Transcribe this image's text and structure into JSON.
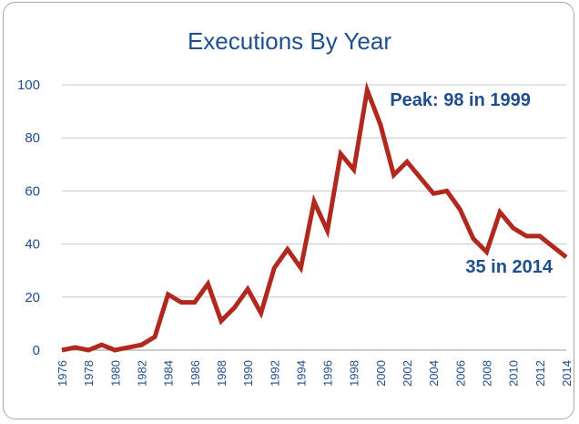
{
  "chart_data": {
    "type": "line",
    "title": "Executions By Year",
    "xlabel": "",
    "ylabel": "",
    "ylim": [
      0,
      100
    ],
    "yticks": [
      0,
      20,
      40,
      60,
      80,
      100
    ],
    "xtick_labels": [
      "1976",
      "1978",
      "1980",
      "1982",
      "1984",
      "1986",
      "1988",
      "1990",
      "1992",
      "1994",
      "1996",
      "1998",
      "2000",
      "2002",
      "2004",
      "2006",
      "2008",
      "2010",
      "2012",
      "2014"
    ],
    "grid": true,
    "x": [
      1976,
      1977,
      1978,
      1979,
      1980,
      1981,
      1982,
      1983,
      1984,
      1985,
      1986,
      1987,
      1988,
      1989,
      1990,
      1991,
      1992,
      1993,
      1994,
      1995,
      1996,
      1997,
      1998,
      1999,
      2000,
      2001,
      2002,
      2003,
      2004,
      2005,
      2006,
      2007,
      2008,
      2009,
      2010,
      2011,
      2012,
      2013,
      2014
    ],
    "series": [
      {
        "values": [
          0,
          1,
          0,
          2,
          0,
          1,
          2,
          5,
          21,
          18,
          18,
          25,
          11,
          16,
          23,
          14,
          31,
          38,
          31,
          56,
          45,
          74,
          68,
          98,
          85,
          66,
          71,
          65,
          59,
          60,
          53,
          42,
          37,
          52,
          46,
          43,
          43,
          39,
          35
        ]
      }
    ],
    "annotations": [
      {
        "text": "Peak: 98 in 1999",
        "x": 1999,
        "y": 98
      },
      {
        "text": "35 in 2014",
        "x": 2014,
        "y": 35
      }
    ],
    "colors": {
      "line": "#b0291f",
      "text": "#1f4e8c",
      "grid": "#c8c8c8"
    }
  }
}
